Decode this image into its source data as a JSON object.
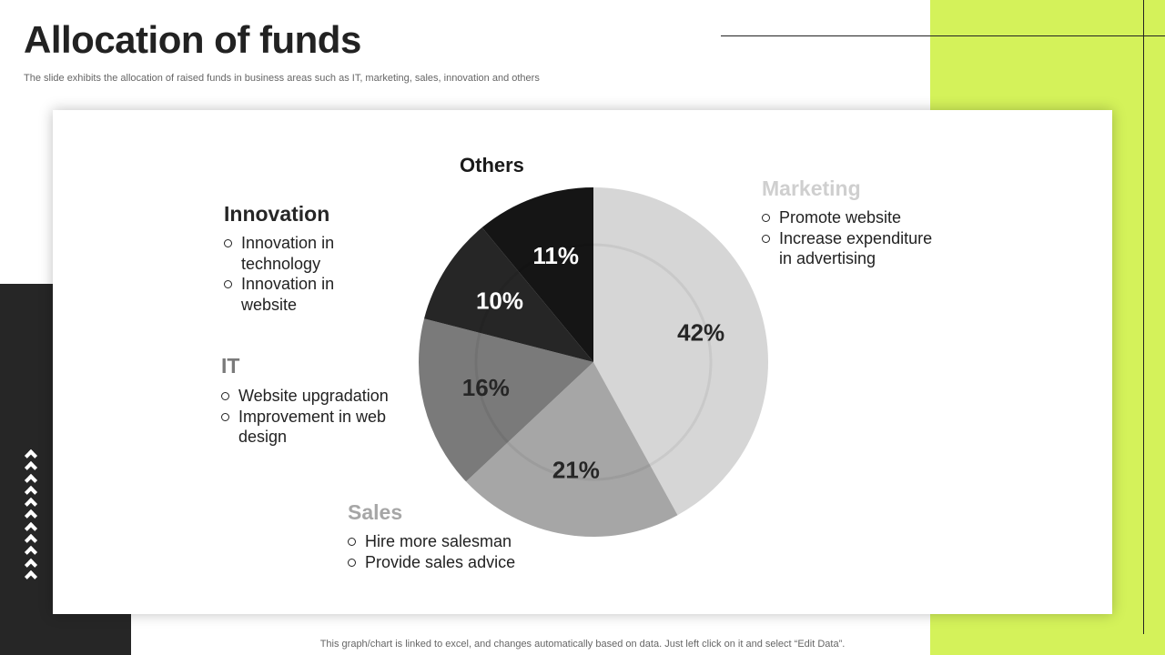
{
  "slide": {
    "title": "Allocation of funds",
    "subtitle": "The slide exhibits the allocation of raised funds in business areas such as IT, marketing, sales, innovation and others",
    "footer_note": "This graph/chart is linked to excel,  and changes automatically based on data. Just left click on it and select “Edit Data”."
  },
  "colors": {
    "accent": "#d4f25a",
    "dark": "#262626"
  },
  "chart_data": {
    "type": "pie",
    "title": "",
    "slices": [
      {
        "label": "Marketing",
        "value": 42,
        "display": "42%",
        "color": "#d6d6d6"
      },
      {
        "label": "Sales",
        "value": 21,
        "display": "21%",
        "color": "#a6a6a6"
      },
      {
        "label": "IT",
        "value": 16,
        "display": "16%",
        "color": "#7a7a7a"
      },
      {
        "label": "Innovation",
        "value": 10,
        "display": "10%",
        "color": "#262626"
      },
      {
        "label": "Others",
        "value": 11,
        "display": "11%",
        "color": "#151515"
      }
    ]
  },
  "categories": {
    "others": {
      "heading": "Others"
    },
    "innovation": {
      "heading": "Innovation",
      "items": [
        "Innovation in technology",
        "Innovation in website"
      ]
    },
    "it": {
      "heading": "IT",
      "items": [
        "Website upgradation",
        "Improvement in web design"
      ]
    },
    "sales": {
      "heading": "Sales",
      "items": [
        "Hire more salesman",
        "Provide sales advice"
      ]
    },
    "marketing": {
      "heading": "Marketing",
      "items": [
        "Promote website",
        "Increase expenditure in advertising"
      ]
    }
  }
}
